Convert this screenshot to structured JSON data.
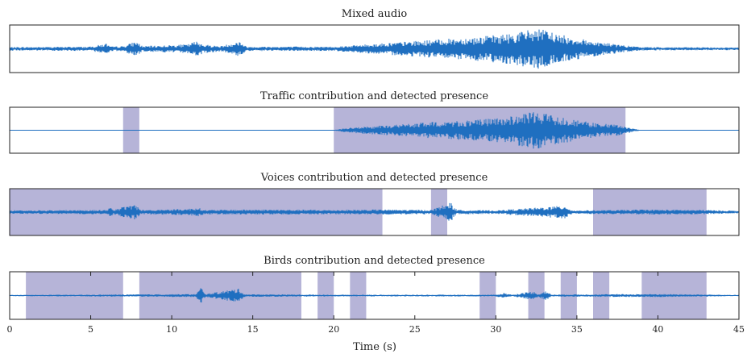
{
  "colors": {
    "waveform": "#1f6fc0",
    "presence_fill": "#8f8cc3",
    "axes": "#222222",
    "background": "#ffffff"
  },
  "chart_data": [
    {
      "type": "line",
      "title": "Mixed audio",
      "xlim": [
        0,
        45
      ],
      "presence": [],
      "envelope": [
        [
          0,
          0.08
        ],
        [
          5,
          0.1
        ],
        [
          6,
          0.25
        ],
        [
          6.2,
          0.1
        ],
        [
          7,
          0.12
        ],
        [
          7.8,
          0.35
        ],
        [
          8.2,
          0.12
        ],
        [
          11,
          0.2
        ],
        [
          11.5,
          0.35
        ],
        [
          12,
          0.2
        ],
        [
          13,
          0.12
        ],
        [
          14.2,
          0.35
        ],
        [
          14.6,
          0.1
        ],
        [
          20,
          0.1
        ],
        [
          21,
          0.15
        ],
        [
          23,
          0.25
        ],
        [
          26,
          0.4
        ],
        [
          29,
          0.55
        ],
        [
          31,
          0.7
        ],
        [
          32.5,
          0.95
        ],
        [
          33,
          0.85
        ],
        [
          34.5,
          0.55
        ],
        [
          36,
          0.35
        ],
        [
          38,
          0.15
        ],
        [
          39,
          0.08
        ],
        [
          45,
          0.06
        ]
      ]
    },
    {
      "type": "line",
      "title": "Traffic contribution and detected presence",
      "xlim": [
        0,
        45
      ],
      "presence": [
        [
          7,
          8
        ],
        [
          20,
          38
        ]
      ],
      "envelope": [
        [
          0,
          0.0
        ],
        [
          20,
          0.02
        ],
        [
          21,
          0.12
        ],
        [
          23,
          0.22
        ],
        [
          26,
          0.38
        ],
        [
          29,
          0.5
        ],
        [
          31,
          0.65
        ],
        [
          32.5,
          0.9
        ],
        [
          33,
          0.8
        ],
        [
          34.5,
          0.55
        ],
        [
          36,
          0.35
        ],
        [
          37.5,
          0.25
        ],
        [
          38.5,
          0.08
        ],
        [
          39,
          0.0
        ],
        [
          45,
          0.0
        ]
      ]
    },
    {
      "type": "line",
      "title": "Voices contribution and detected presence",
      "xlim": [
        0,
        45
      ],
      "presence": [
        [
          0,
          23
        ],
        [
          26,
          27
        ],
        [
          36,
          43
        ]
      ],
      "envelope": [
        [
          0,
          0.08
        ],
        [
          6,
          0.1
        ],
        [
          6.2,
          0.28
        ],
        [
          6.4,
          0.1
        ],
        [
          7.7,
          0.38
        ],
        [
          8.1,
          0.1
        ],
        [
          11,
          0.15
        ],
        [
          11.6,
          0.22
        ],
        [
          12,
          0.1
        ],
        [
          15,
          0.12
        ],
        [
          20,
          0.1
        ],
        [
          23,
          0.12
        ],
        [
          26,
          0.1
        ],
        [
          27.2,
          0.45
        ],
        [
          27.6,
          0.1
        ],
        [
          30,
          0.08
        ],
        [
          34.3,
          0.3
        ],
        [
          34.7,
          0.08
        ],
        [
          38,
          0.1
        ],
        [
          39,
          0.12
        ],
        [
          43,
          0.1
        ],
        [
          45,
          0.06
        ]
      ]
    },
    {
      "type": "line",
      "title": "Birds contribution and detected presence",
      "xlabel": "Time (s)",
      "xlim": [
        0,
        45
      ],
      "xticks": [
        0,
        5,
        10,
        15,
        20,
        25,
        30,
        35,
        40,
        45
      ],
      "presence": [
        [
          1,
          7
        ],
        [
          8,
          18
        ],
        [
          19,
          20
        ],
        [
          21,
          22
        ],
        [
          29,
          30
        ],
        [
          32,
          33
        ],
        [
          34,
          35
        ],
        [
          36,
          37
        ],
        [
          39,
          43
        ]
      ],
      "envelope": [
        [
          0,
          0.03
        ],
        [
          5,
          0.04
        ],
        [
          11.5,
          0.07
        ],
        [
          11.8,
          0.38
        ],
        [
          12.1,
          0.07
        ],
        [
          14.1,
          0.32
        ],
        [
          14.5,
          0.06
        ],
        [
          20,
          0.04
        ],
        [
          30,
          0.04
        ],
        [
          30.5,
          0.12
        ],
        [
          31,
          0.04
        ],
        [
          32.3,
          0.2
        ],
        [
          32.6,
          0.06
        ],
        [
          33.1,
          0.22
        ],
        [
          33.4,
          0.05
        ],
        [
          40,
          0.07
        ],
        [
          45,
          0.03
        ]
      ]
    }
  ]
}
